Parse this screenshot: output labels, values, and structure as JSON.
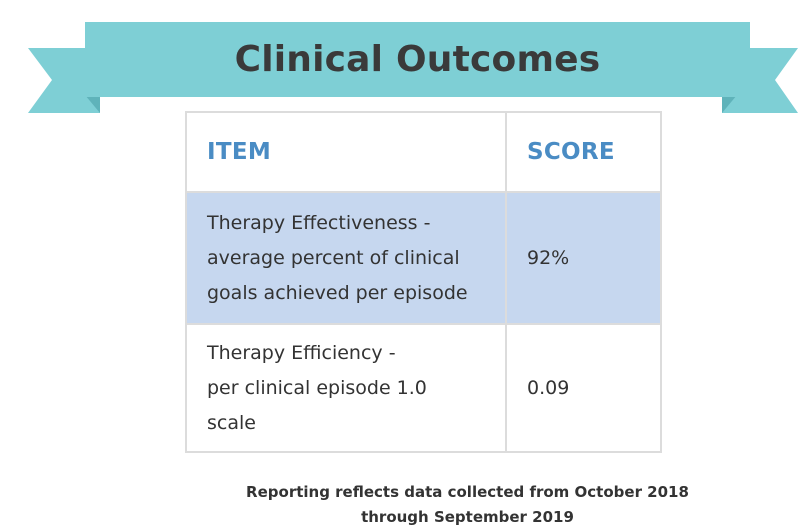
{
  "banner": {
    "title": "Clinical Outcomes",
    "color": "#7ecfd5",
    "shadow_color": "#5fb3ba"
  },
  "table": {
    "headers": {
      "item": "ITEM",
      "score": "SCORE"
    },
    "header_color": "#4a8cc4",
    "highlight_color": "#c6d7ef",
    "rows": [
      {
        "item_lines": [
          "Therapy Effectiveness -",
          "average percent of clinical",
          "goals achieved per episode"
        ],
        "score": "92%",
        "highlighted": true
      },
      {
        "item_lines": [
          "Therapy Efficiency -",
          "per clinical episode 1.0",
          "scale"
        ],
        "score": "0.09",
        "highlighted": false
      }
    ]
  },
  "footnote": {
    "line1": "Reporting reflects data collected from October 2018",
    "line2": "through September 2019"
  }
}
